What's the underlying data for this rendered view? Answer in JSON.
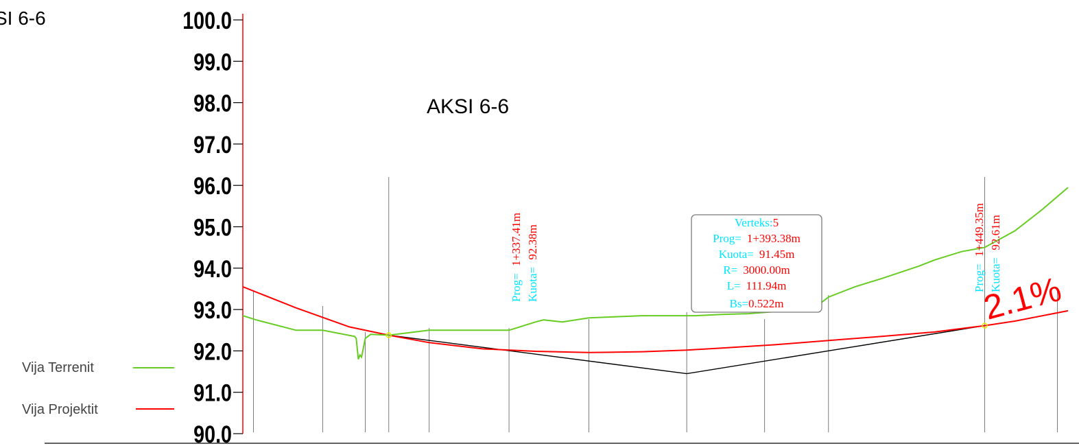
{
  "corner_title": "SI 6-6",
  "title": "AKSI 6-6",
  "colors": {
    "axis": "#ff0000",
    "terrain": "#66cc22",
    "project": "#ff0000",
    "tangent": "#000000",
    "label_cyan": "#00e5ff",
    "label_red": "#ff0000",
    "station": "#7a7a7a"
  },
  "legend": {
    "terrain_label": "Vija Terrenit",
    "project_label": "Vija Projektit"
  },
  "y_axis": {
    "min": 90.0,
    "max": 100.0,
    "ticks": [
      "100.0",
      "99.0",
      "98.0",
      "97.0",
      "96.0",
      "95.0",
      "94.0",
      "93.0",
      "92.0",
      "91.0",
      "90.0"
    ]
  },
  "point_labels": {
    "left": {
      "prog_key": "Prog=",
      "prog_val": "1+337.41m",
      "kuota_key": "Kuota=",
      "kuota_val": "92.38m"
    },
    "right": {
      "prog_key": "Prog=",
      "prog_val": "1+449.35m",
      "kuota_key": "Kuota=",
      "kuota_val": "92.61m"
    }
  },
  "vertex_box": {
    "vertex_key": "Verteks:",
    "vertex_val": "5",
    "prog_key": "Prog=",
    "prog_val": "1+393.38m",
    "kuota_key": "Kuota=",
    "kuota_val": "91.45m",
    "r_key": "R=",
    "r_val": "3000.00m",
    "l_key": "L=",
    "l_val": "111.94m",
    "bs_key": "Bs=",
    "bs_val": "0.522m"
  },
  "grade_label": "2.1%",
  "chart_data": {
    "type": "line",
    "y_unit": "elevation",
    "ylim": [
      90.0,
      100.0
    ],
    "series": [
      {
        "name": "Vija Terrenit",
        "points": [
          [
            1310.0,
            92.85
          ],
          [
            1312.5,
            92.75
          ],
          [
            1320.0,
            92.5
          ],
          [
            1325.0,
            92.5
          ],
          [
            1331.0,
            92.35
          ],
          [
            1331.3,
            92.3
          ],
          [
            1331.7,
            91.8
          ],
          [
            1332.0,
            91.9
          ],
          [
            1332.3,
            91.85
          ],
          [
            1333.0,
            92.3
          ],
          [
            1334.0,
            92.4
          ],
          [
            1337.41,
            92.38
          ],
          [
            1345.0,
            92.5
          ],
          [
            1360.0,
            92.5
          ],
          [
            1365.0,
            92.7
          ],
          [
            1366.5,
            92.75
          ],
          [
            1370.0,
            92.7
          ],
          [
            1375.0,
            92.8
          ],
          [
            1385.0,
            92.85
          ],
          [
            1395.0,
            92.85
          ],
          [
            1400.0,
            92.88
          ],
          [
            1405.0,
            92.9
          ],
          [
            1410.0,
            92.95
          ],
          [
            1415.0,
            93.0
          ],
          [
            1418.0,
            93.1
          ],
          [
            1420.0,
            93.3
          ],
          [
            1425.0,
            93.55
          ],
          [
            1430.0,
            93.75
          ],
          [
            1437.0,
            94.05
          ],
          [
            1440.0,
            94.2
          ],
          [
            1445.0,
            94.4
          ],
          [
            1449.35,
            94.5
          ],
          [
            1455.0,
            94.9
          ],
          [
            1460.0,
            95.4
          ],
          [
            1465.0,
            95.95
          ]
        ]
      },
      {
        "name": "Vija Projektit",
        "points": [
          [
            1310.0,
            93.55
          ],
          [
            1320.0,
            93.04
          ],
          [
            1330.0,
            92.58
          ],
          [
            1337.41,
            92.38
          ],
          [
            1345.0,
            92.2
          ],
          [
            1355.0,
            92.05
          ],
          [
            1365.0,
            91.99
          ],
          [
            1375.0,
            91.96
          ],
          [
            1385.0,
            91.98
          ],
          [
            1393.38,
            92.02
          ],
          [
            1400.0,
            92.07
          ],
          [
            1410.0,
            92.15
          ],
          [
            1420.0,
            92.25
          ],
          [
            1430.0,
            92.35
          ],
          [
            1440.0,
            92.46
          ],
          [
            1449.35,
            92.61
          ],
          [
            1455.0,
            92.72
          ],
          [
            1465.0,
            92.97
          ]
        ]
      },
      {
        "name": "tangent",
        "points": [
          [
            1337.41,
            92.38
          ],
          [
            1393.38,
            91.45
          ],
          [
            1449.35,
            92.61
          ]
        ]
      }
    ],
    "stations": [
      1312.0,
      1325.0,
      1333.0,
      1337.41,
      1345.0,
      1360.0,
      1375.0,
      1393.38,
      1408.0,
      1420.0,
      1449.35,
      1463.0
    ],
    "tangent_points": [
      [
        1337.41,
        92.38
      ],
      [
        1449.35,
        92.61
      ]
    ],
    "vertex": [
      1393.38,
      91.45
    ]
  }
}
